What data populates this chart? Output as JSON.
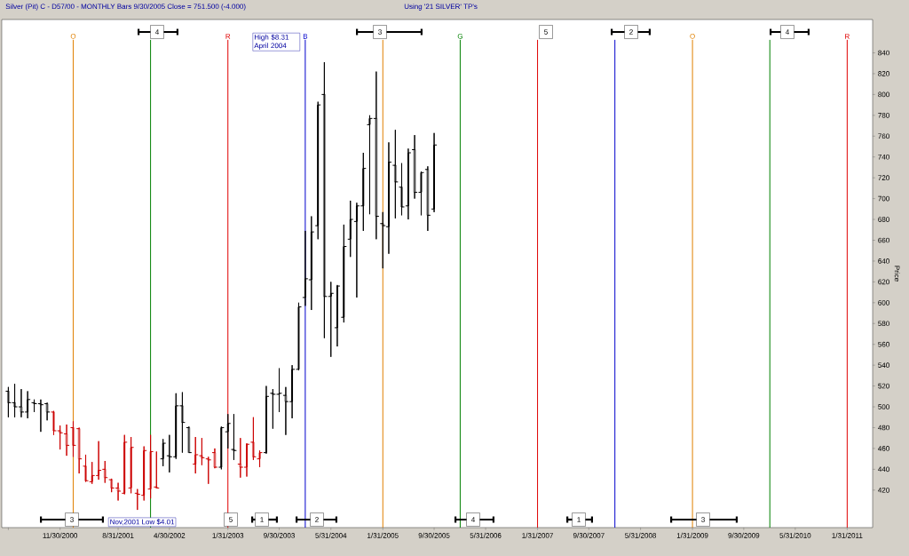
{
  "chart_data": {
    "type": "candlestick",
    "title": "Silver (Pit) C - D57/00  - MONTHLY Bars  9/30/2005 Close = 751.500 (-4.000)",
    "subtitle": "Using '21 SILVER' TP's",
    "ylabel": "Price",
    "x": [
      "2000-03-31",
      "2000-04-30",
      "2000-05-31",
      "2000-06-30",
      "2000-07-31",
      "2000-08-31",
      "2000-09-30",
      "2000-10-31",
      "2000-11-30",
      "2000-12-31",
      "2001-01-31",
      "2001-02-28",
      "2001-03-31",
      "2001-04-30",
      "2001-05-31",
      "2001-06-30",
      "2001-07-31",
      "2001-08-31",
      "2001-09-30",
      "2001-10-31",
      "2001-11-30",
      "2001-12-31",
      "2002-01-31",
      "2002-02-28",
      "2002-03-31",
      "2002-04-30",
      "2002-05-31",
      "2002-06-30",
      "2002-07-31",
      "2002-08-31",
      "2002-09-30",
      "2002-10-31",
      "2002-11-30",
      "2002-12-31",
      "2003-01-31",
      "2003-02-28",
      "2003-03-31",
      "2003-04-30",
      "2003-05-31",
      "2003-06-30",
      "2003-07-31",
      "2003-08-31",
      "2003-09-30",
      "2003-10-31",
      "2003-11-30",
      "2003-12-31",
      "2004-01-31",
      "2004-02-29",
      "2004-03-31",
      "2004-04-30",
      "2004-05-31",
      "2004-06-30",
      "2004-07-31",
      "2004-08-31",
      "2004-09-30",
      "2004-10-31",
      "2004-11-30",
      "2004-12-31",
      "2005-01-31",
      "2005-02-28",
      "2005-03-31",
      "2005-04-30",
      "2005-05-31",
      "2005-06-30",
      "2005-07-31",
      "2005-08-31",
      "2005-09-30"
    ],
    "ohlc": [
      [
        515,
        519,
        490,
        504
      ],
      [
        504,
        522,
        490,
        500
      ],
      [
        500,
        517,
        490,
        495
      ],
      [
        495,
        515,
        489,
        507
      ],
      [
        504,
        507,
        495,
        503
      ],
      [
        503,
        507,
        476,
        502
      ],
      [
        503,
        504,
        487,
        495
      ],
      [
        495,
        496,
        473,
        477
      ],
      [
        477,
        482,
        459,
        475
      ],
      [
        474,
        483,
        453,
        463
      ],
      [
        480,
        486,
        452,
        463
      ],
      [
        479,
        480,
        436,
        450
      ],
      [
        443,
        454,
        428,
        429
      ],
      [
        428,
        447,
        426,
        434
      ],
      [
        434,
        467,
        430,
        439
      ],
      [
        440,
        448,
        427,
        432
      ],
      [
        430,
        431,
        418,
        422
      ],
      [
        422,
        427,
        410,
        419
      ],
      [
        417,
        473,
        416,
        466
      ],
      [
        422,
        471,
        417,
        461
      ],
      [
        417,
        421,
        401,
        416
      ],
      [
        415,
        462,
        410,
        458
      ],
      [
        421,
        473,
        412,
        457
      ],
      [
        423,
        457,
        422,
        422
      ],
      [
        450,
        469,
        443,
        465
      ],
      [
        453,
        473,
        437,
        452
      ],
      [
        452,
        513,
        450,
        501
      ],
      [
        501,
        514,
        456,
        485
      ],
      [
        480,
        481,
        456,
        456
      ],
      [
        445,
        471,
        436,
        454
      ],
      [
        453,
        470,
        444,
        451
      ],
      [
        450,
        452,
        426,
        449
      ],
      [
        456,
        460,
        441,
        442
      ],
      [
        442,
        481,
        440,
        480
      ],
      [
        476,
        493,
        460,
        484
      ],
      [
        459,
        493,
        449,
        458
      ],
      [
        445,
        470,
        432,
        442
      ],
      [
        442,
        465,
        433,
        464
      ],
      [
        466,
        490,
        449,
        452
      ],
      [
        450,
        458,
        442,
        456
      ],
      [
        456,
        520,
        455,
        510
      ],
      [
        513,
        517,
        479,
        512
      ],
      [
        512,
        537,
        495,
        513
      ],
      [
        511,
        519,
        473,
        505
      ],
      [
        505,
        540,
        489,
        536
      ],
      [
        536,
        600,
        535,
        596
      ],
      [
        605,
        669,
        597,
        623
      ],
      [
        622,
        683,
        593,
        668
      ],
      [
        674,
        793,
        661,
        790
      ],
      [
        800,
        831,
        566,
        606
      ],
      [
        606,
        620,
        548,
        609
      ],
      [
        576,
        617,
        558,
        616
      ],
      [
        586,
        675,
        581,
        654
      ],
      [
        661,
        698,
        644,
        680
      ],
      [
        678,
        696,
        605,
        693
      ],
      [
        693,
        744,
        669,
        729
      ],
      [
        771,
        780,
        685,
        777
      ],
      [
        777,
        822,
        661,
        683
      ],
      [
        676,
        687,
        633,
        674
      ],
      [
        673,
        754,
        647,
        735
      ],
      [
        732,
        766,
        681,
        716
      ],
      [
        711,
        734,
        684,
        692
      ],
      [
        693,
        748,
        680,
        744
      ],
      [
        747,
        761,
        700,
        706
      ],
      [
        706,
        726,
        684,
        725
      ],
      [
        728,
        731,
        669,
        684
      ],
      [
        690,
        763,
        687,
        751.5
      ]
    ],
    "colors": [
      "#000000",
      "#000000",
      "#000000",
      "#000000",
      "#000000",
      "#000000",
      "#000000",
      "#cc0000",
      "#cc0000",
      "#cc0000",
      "#cc0000",
      "#cc0000",
      "#cc0000",
      "#cc0000",
      "#cc0000",
      "#cc0000",
      "#cc0000",
      "#cc0000",
      "#cc0000",
      "#cc0000",
      "#cc0000",
      "#cc0000",
      "#cc0000",
      "#cc0000",
      "#000000",
      "#000000",
      "#000000",
      "#000000",
      "#000000",
      "#cc0000",
      "#cc0000",
      "#cc0000",
      "#cc0000",
      "#000000",
      "#000000",
      "#000000",
      "#cc0000",
      "#cc0000",
      "#cc0000",
      "#cc0000",
      "#000000",
      "#000000",
      "#000000",
      "#000000",
      "#000000",
      "#000000",
      "#000000",
      "#000000",
      "#000000",
      "#000000",
      "#000000",
      "#000000",
      "#000000",
      "#000000",
      "#000000",
      "#000000",
      "#000000",
      "#000000",
      "#000000",
      "#000000",
      "#000000",
      "#000000",
      "#000000",
      "#000000",
      "#000000",
      "#000000",
      "#000000"
    ],
    "xlim": [
      "2000-02-29",
      "2011-05-31"
    ],
    "ylim": [
      384,
      872
    ],
    "xticks": [
      {
        "value": "2000-03-31",
        "label": null
      },
      {
        "value": "2000-11-30",
        "label": "11/30/2000"
      },
      {
        "value": "2001-08-31",
        "label": "8/31/2001"
      },
      {
        "value": "2002-04-30",
        "label": "4/30/2002"
      },
      {
        "value": "2003-01-31",
        "label": "1/31/2003"
      },
      {
        "value": "2003-09-30",
        "label": "9/30/2003"
      },
      {
        "value": "2004-05-31",
        "label": "5/31/2004"
      },
      {
        "value": "2005-01-31",
        "label": "1/31/2005"
      },
      {
        "value": "2005-09-30",
        "label": "9/30/2005"
      },
      {
        "value": "2006-05-31",
        "label": "5/31/2006"
      },
      {
        "value": "2007-01-31",
        "label": "1/31/2007"
      },
      {
        "value": "2007-09-30",
        "label": "9/30/2007"
      },
      {
        "value": "2008-05-31",
        "label": "5/31/2008"
      },
      {
        "value": "2009-01-31",
        "label": "1/31/2009"
      },
      {
        "value": "2009-09-30",
        "label": "9/30/2009"
      },
      {
        "value": "2010-05-31",
        "label": "5/31/2010"
      },
      {
        "value": "2011-01-31",
        "label": "1/31/2011"
      }
    ],
    "yticks": [
      420,
      440,
      460,
      480,
      500,
      520,
      540,
      560,
      580,
      600,
      620,
      640,
      660,
      680,
      700,
      720,
      740,
      760,
      780,
      800,
      820,
      840
    ],
    "ref_lines": [
      {
        "axis": "x",
        "value": "2001-01-31",
        "label": "O",
        "color": "#e08000"
      },
      {
        "axis": "x",
        "value": "2002-01-31",
        "label": null,
        "color": "#008000"
      },
      {
        "axis": "x",
        "value": "2003-01-31",
        "label": "R",
        "color": "#e00000"
      },
      {
        "axis": "x",
        "value": "2004-01-31",
        "label": "B",
        "color": "#0000cc"
      },
      {
        "axis": "x",
        "value": "2005-01-31",
        "label": null,
        "color": "#e08000"
      },
      {
        "axis": "x",
        "value": "2006-01-31",
        "label": "G",
        "color": "#008000"
      },
      {
        "axis": "x",
        "value": "2007-01-31",
        "label": null,
        "color": "#e00000"
      },
      {
        "axis": "x",
        "value": "2008-01-31",
        "label": null,
        "color": "#0000cc"
      },
      {
        "axis": "x",
        "value": "2009-01-31",
        "label": "O",
        "color": "#e08000"
      },
      {
        "axis": "x",
        "value": "2010-01-31",
        "label": null,
        "color": "#008000"
      },
      {
        "axis": "x",
        "value": "2011-01-31",
        "label": "R",
        "color": "#e00000"
      }
    ],
    "annotations": [
      "High $8.31 April 2004",
      "Nov,2001 Low $4.01",
      "3",
      "4",
      "5",
      "1",
      "2",
      "3",
      "4",
      "5",
      "1",
      "2",
      "3",
      "4"
    ]
  }
}
